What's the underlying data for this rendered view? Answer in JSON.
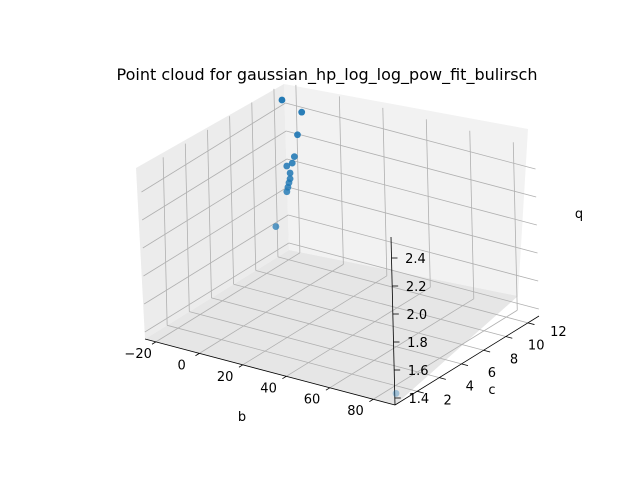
{
  "chart_data": {
    "type": "scatter",
    "title": "Point cloud for gaussian_hp_log_log_pow_fit_bulirsch",
    "xlabel": "b",
    "ylabel": "c",
    "zlabel": "q",
    "xlim": [
      -25,
      90
    ],
    "ylim": [
      0,
      13
    ],
    "zlim": [
      1.35,
      2.55
    ],
    "xticks": [
      "−20",
      "0",
      "20",
      "40",
      "60",
      "80"
    ],
    "xtick_values": [
      -20,
      0,
      20,
      40,
      60,
      80
    ],
    "yticks": [
      "2",
      "4",
      "6",
      "8",
      "10",
      "12"
    ],
    "ytick_values": [
      2,
      4,
      6,
      8,
      10,
      12
    ],
    "zticks": [
      "1.4",
      "1.6",
      "1.8",
      "2.0",
      "2.2",
      "2.4"
    ],
    "ztick_values": [
      1.4,
      1.6,
      1.8,
      2.0,
      2.2,
      2.4
    ],
    "grid": true,
    "color": "#1f77b4",
    "points": [
      {
        "b": -24.0,
        "c": 12.5,
        "q": 2.45
      },
      {
        "b": -15.0,
        "c": 12.5,
        "q": 2.4
      },
      {
        "b": -12.0,
        "c": 11.5,
        "q": 2.3
      },
      {
        "b": -9.0,
        "c": 10.6,
        "q": 2.2
      },
      {
        "b": -8.5,
        "c": 10.3,
        "q": 2.17
      },
      {
        "b": -9.5,
        "c": 10.0,
        "q": 2.16
      },
      {
        "b": -7.0,
        "c": 9.8,
        "q": 2.13
      },
      {
        "b": -5.5,
        "c": 9.5,
        "q": 2.11
      },
      {
        "b": -4.5,
        "c": 9.2,
        "q": 2.1
      },
      {
        "b": -4.0,
        "c": 9.0,
        "q": 2.08
      },
      {
        "b": -3.5,
        "c": 8.8,
        "q": 2.06
      },
      {
        "b": 3.0,
        "c": 6.5,
        "q": 1.95
      },
      {
        "b": 88.0,
        "c": 0.5,
        "q": 1.4
      }
    ]
  }
}
